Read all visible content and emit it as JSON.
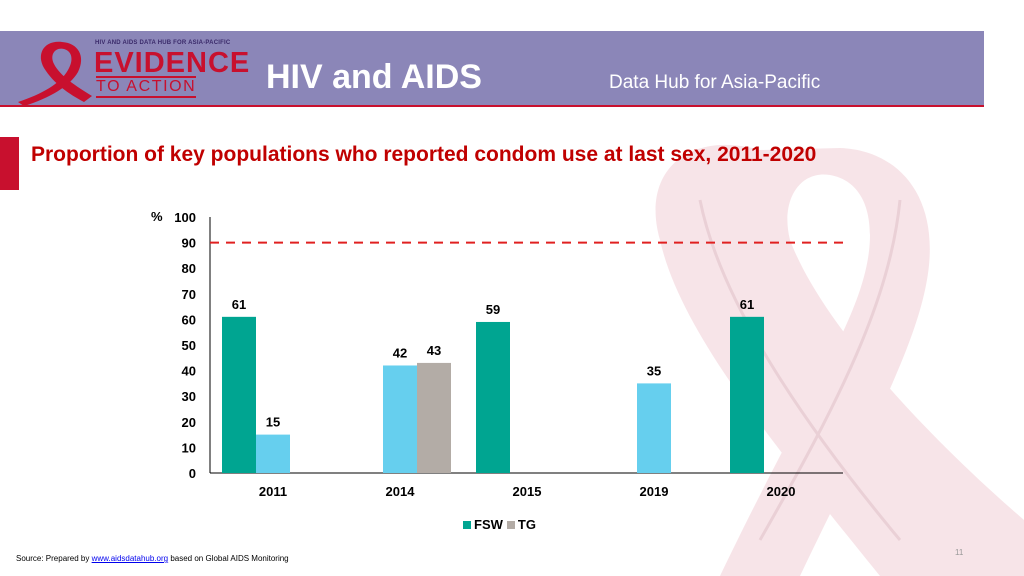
{
  "header": {
    "logo_top": "HIV AND AIDS DATA HUB FOR ASIA-PACIFIC",
    "logo_main": "EVIDENCE",
    "logo_sub": "TO ACTION",
    "title": "HIV and AIDS",
    "subtitle": "Data Hub for Asia-Pacific"
  },
  "slide_title": "Proportion of key populations who reported condom use at last sex, 2011-2020",
  "colors": {
    "header_bg": "#8b86b8",
    "accent": "#c8102e",
    "fsw": "#00a591",
    "tg": "#b3aca6",
    "light_blue": "#66cfee",
    "target_line": "#e02020"
  },
  "chart_data": {
    "type": "bar",
    "categories": [
      "2011",
      "2014",
      "2015",
      "2019",
      "2020"
    ],
    "bars": [
      {
        "category": "2011",
        "slot": 0,
        "value": 61,
        "color_key": "fsw",
        "label": "61"
      },
      {
        "category": "2011",
        "slot": 1,
        "value": 15,
        "color_key": "light_blue",
        "label": "15"
      },
      {
        "category": "2014",
        "slot": 0,
        "value": 42,
        "color_key": "light_blue",
        "label": "42"
      },
      {
        "category": "2014",
        "slot": 1,
        "value": 43,
        "color_key": "tg",
        "label": "43"
      },
      {
        "category": "2015",
        "slot": 0,
        "value": 59,
        "color_key": "fsw",
        "label": "59"
      },
      {
        "category": "2019",
        "slot": 0,
        "value": 35,
        "color_key": "light_blue",
        "label": "35"
      },
      {
        "category": "2020",
        "slot": 0,
        "value": 61,
        "color_key": "fsw",
        "label": "61"
      }
    ],
    "series": [
      {
        "name": "FSW",
        "color_key": "fsw"
      },
      {
        "name": "TG",
        "color_key": "tg"
      }
    ],
    "ylabel": "%",
    "ylim": [
      0,
      100
    ],
    "yticks": [
      0,
      10,
      20,
      30,
      40,
      50,
      60,
      70,
      80,
      90,
      100
    ],
    "target_line": 90,
    "grid": false,
    "legend_position": "bottom"
  },
  "footer": {
    "source_prefix": "Source: Prepared by ",
    "source_link": "www.aidsdatahub.org",
    "source_suffix": "  based on Global AIDS Monitoring",
    "page_number": "11"
  }
}
